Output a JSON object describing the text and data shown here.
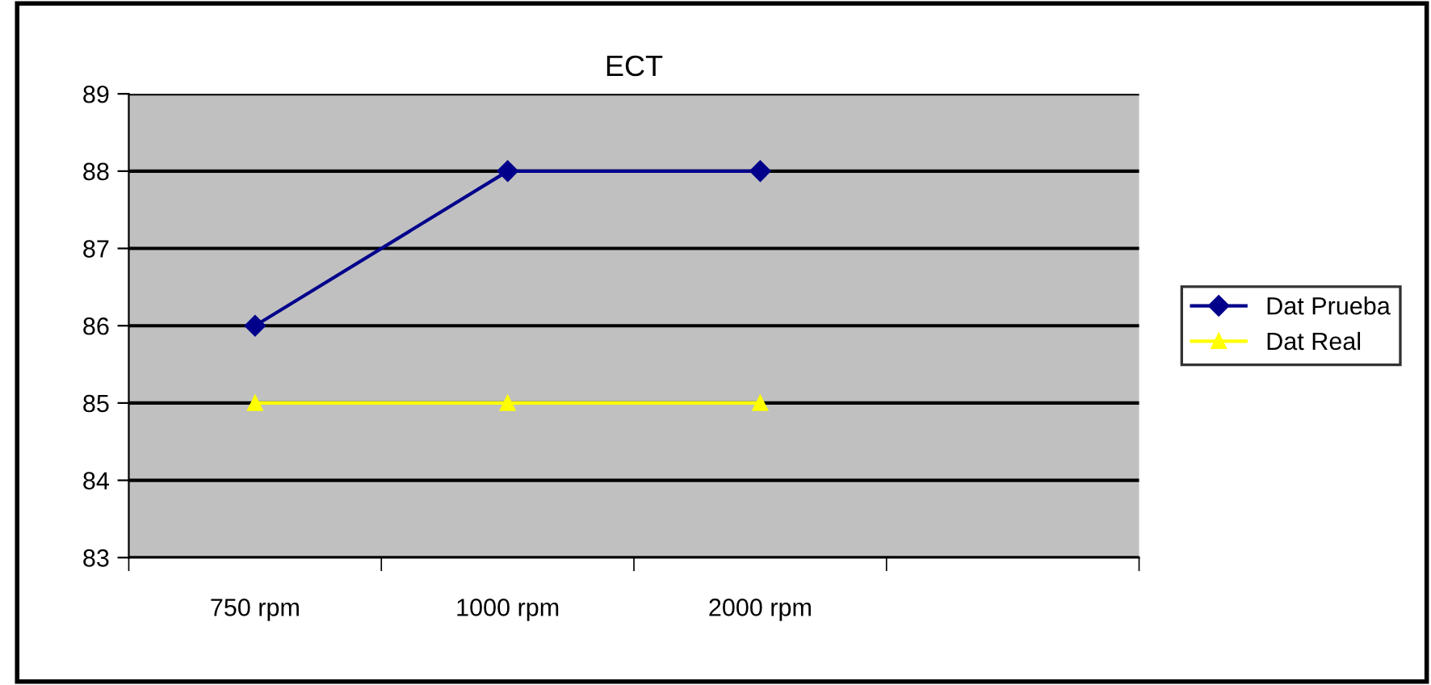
{
  "chart_data": {
    "type": "line",
    "title": "ECT",
    "categories": [
      "750 rpm",
      "1000 rpm",
      "2000 rpm",
      null
    ],
    "series": [
      {
        "name": "Dat Prueba",
        "color": "#00008b",
        "marker": "diamond",
        "values": [
          86,
          88,
          88,
          null
        ]
      },
      {
        "name": "Dat Real",
        "color": "#ffff00",
        "marker": "triangle",
        "values": [
          85,
          85,
          85,
          null
        ]
      }
    ],
    "ylim": [
      83,
      89
    ],
    "yticks": [
      83,
      84,
      85,
      86,
      87,
      88,
      89
    ],
    "grid": "y",
    "legend": "right",
    "line_style": "solid"
  }
}
